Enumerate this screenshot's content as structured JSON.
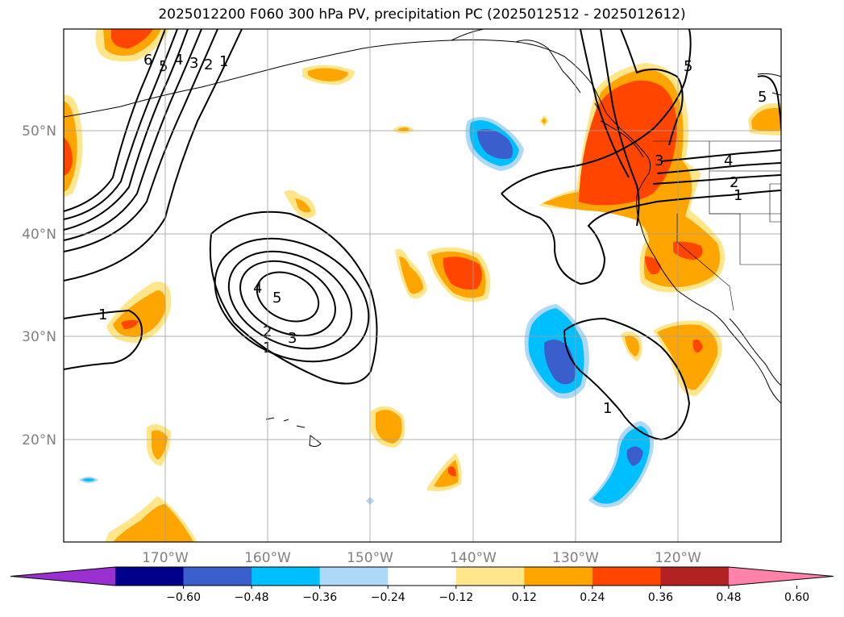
{
  "title": "2025012200 F060 300 hPa PV, precipitation PC (2025012512 - 2025012612)",
  "map": {
    "lat_labels": [
      "50°N",
      "40°N",
      "30°N",
      "20°N"
    ],
    "lon_labels": [
      "170°W",
      "160°W",
      "150°W",
      "140°W",
      "130°W",
      "120°W"
    ],
    "pv_contour_labels": [
      "6",
      "5",
      "4",
      "3",
      "2",
      "1",
      "1",
      "5",
      "4",
      "3",
      "2",
      "1",
      "5",
      "5",
      "3",
      "4",
      "2",
      "1",
      "1"
    ]
  },
  "colorbar": {
    "tick_labels": [
      "−0.60",
      "−0.48",
      "−0.36",
      "−0.24",
      "−0.12",
      "0.12",
      "0.24",
      "0.36",
      "0.48",
      "0.60"
    ],
    "colors": [
      "#9b30d0",
      "#00008b",
      "#3a5fcd",
      "#00bfff",
      "#add8f6",
      "#ffffff",
      "#ffe68a",
      "#ffa500",
      "#ff4500",
      "#b22222",
      "#ff82ab"
    ]
  },
  "precipitation_pc": {
    "positive_color": "#ffa500",
    "positive_strong_color": "#ff4500",
    "positive_weak_color": "#ffe68a",
    "negative_color": "#00bfff",
    "negative_strong_color": "#3a5fcd",
    "negative_weak_color": "#add8f6"
  }
}
